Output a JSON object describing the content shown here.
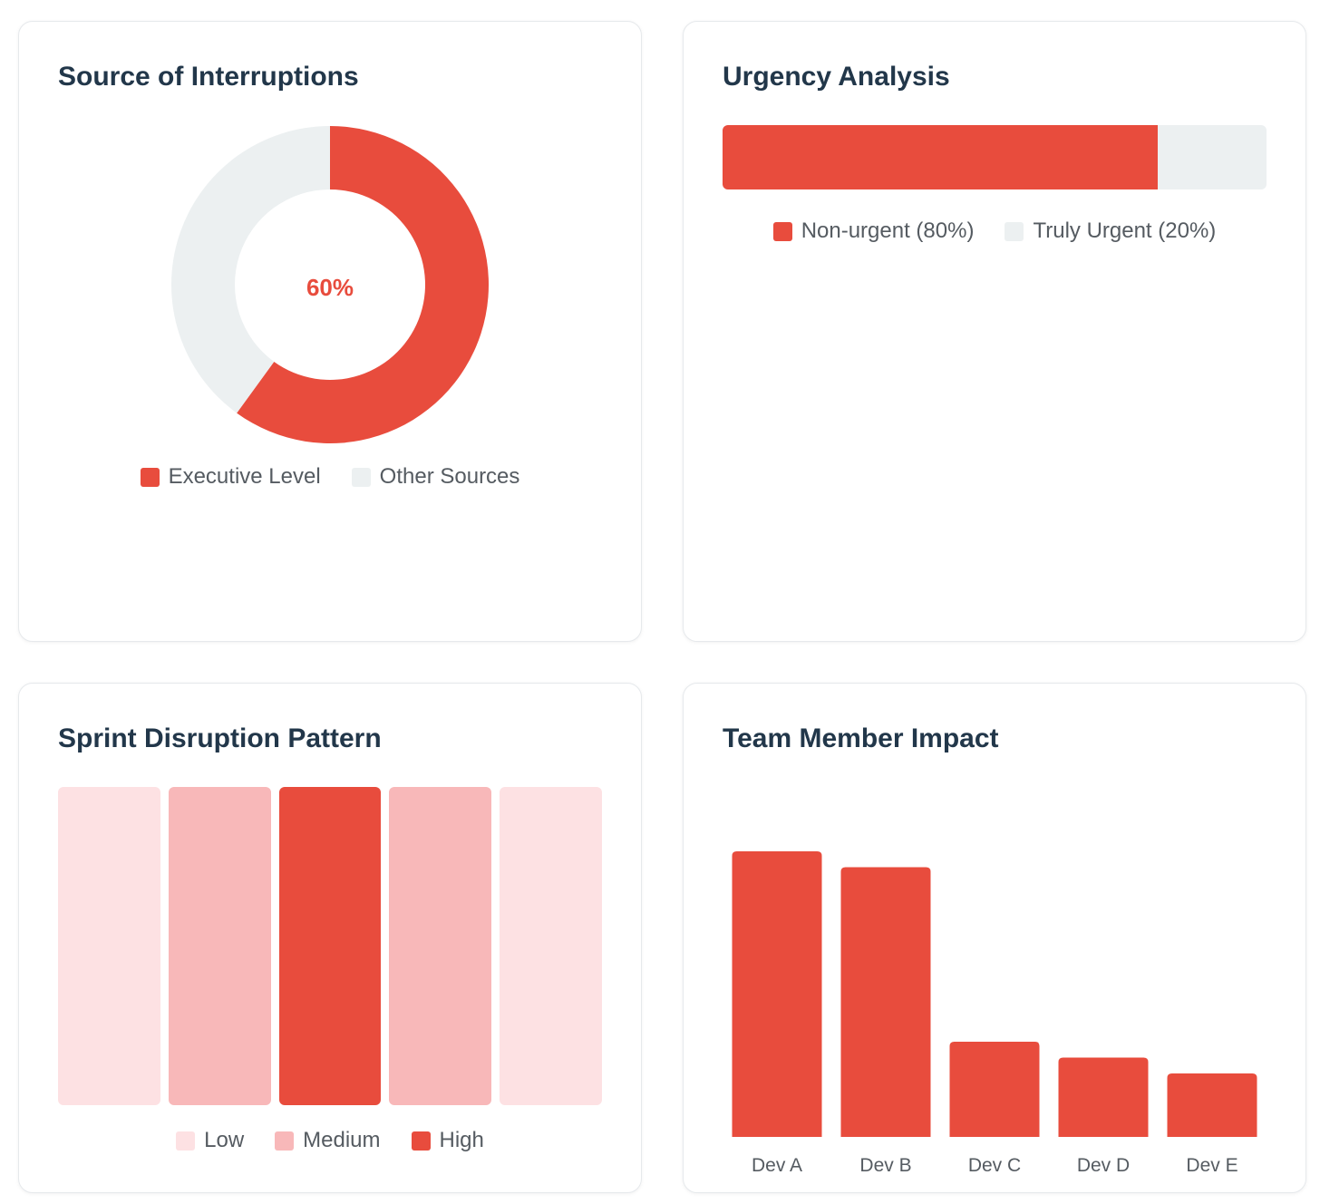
{
  "colors": {
    "red": "#e84c3d",
    "light_gray": "#ecf0f1",
    "low": "#fde1e3",
    "medium": "#f8b8b9",
    "high": "#e84c3d"
  },
  "cards": {
    "donut": {
      "title": "Source of Interruptions",
      "center_label": "60%",
      "legend": [
        {
          "label": "Executive Level",
          "color": "#e84c3d"
        },
        {
          "label": "Other Sources",
          "color": "#ecf0f1"
        }
      ]
    },
    "urgency": {
      "title": "Urgency Analysis",
      "legend": [
        {
          "label": "Non-urgent (80%)",
          "color": "#e84c3d"
        },
        {
          "label": "Truly Urgent (20%)",
          "color": "#ecf0f1"
        }
      ]
    },
    "sprint": {
      "title": "Sprint Disruption Pattern",
      "legend": [
        {
          "label": "Low",
          "color": "#fde1e3"
        },
        {
          "label": "Medium",
          "color": "#f8b8b9"
        },
        {
          "label": "High",
          "color": "#e84c3d"
        }
      ]
    },
    "team": {
      "title": "Team Member Impact"
    }
  },
  "chart_data": [
    {
      "type": "pie",
      "title": "Source of Interruptions",
      "categories": [
        "Executive Level",
        "Other Sources"
      ],
      "values": [
        60,
        40
      ],
      "center_label": "60%"
    },
    {
      "type": "bar",
      "orientation": "horizontal-stacked",
      "title": "Urgency Analysis",
      "categories": [
        "Non-urgent",
        "Truly Urgent"
      ],
      "values": [
        80,
        20
      ]
    },
    {
      "type": "heatmap",
      "title": "Sprint Disruption Pattern",
      "levels": [
        "Low",
        "Medium",
        "High",
        "Medium",
        "Low"
      ]
    },
    {
      "type": "bar",
      "title": "Team Member Impact",
      "categories": [
        "Dev A",
        "Dev B",
        "Dev C",
        "Dev D",
        "Dev E"
      ],
      "values": [
        90,
        85,
        30,
        25,
        20
      ],
      "ylim": [
        0,
        100
      ]
    }
  ]
}
